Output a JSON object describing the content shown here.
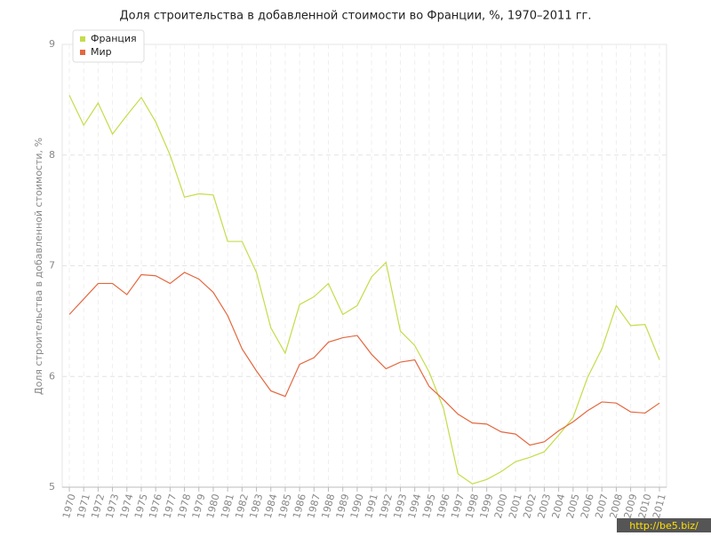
{
  "chart_data": {
    "type": "line",
    "title": "Доля строительства в добавленной стоимости во Франции, %, 1970–2011 гг.",
    "y_label": "Доля строительства в добавленной стоимости, %",
    "watermark": "http://be5.biz/",
    "categories": [
      "1970",
      "1971",
      "1972",
      "1973",
      "1974",
      "1975",
      "1976",
      "1977",
      "1978",
      "1979",
      "1980",
      "1981",
      "1982",
      "1983",
      "1984",
      "1985",
      "1986",
      "1987",
      "1988",
      "1989",
      "1990",
      "1991",
      "1992",
      "1993",
      "1994",
      "1995",
      "1996",
      "1997",
      "1998",
      "1999",
      "2000",
      "2001",
      "2002",
      "2003",
      "2004",
      "2005",
      "2006",
      "2007",
      "2008",
      "2009",
      "2010",
      "2011"
    ],
    "series": [
      {
        "name": "Франция",
        "color": "#c5dc4a",
        "values": [
          8.54,
          8.27,
          8.47,
          8.19,
          8.36,
          8.52,
          8.3,
          8.0,
          7.62,
          7.65,
          7.64,
          7.22,
          7.22,
          6.94,
          6.44,
          6.21,
          6.65,
          6.72,
          6.84,
          6.56,
          6.64,
          6.9,
          7.03,
          6.41,
          6.28,
          6.04,
          5.71,
          5.12,
          5.03,
          5.07,
          5.14,
          5.23,
          5.27,
          5.32,
          5.47,
          5.63,
          5.99,
          6.25,
          6.64,
          6.46,
          6.47,
          6.15
        ]
      },
      {
        "name": "Мир",
        "color": "#e3683f",
        "values": [
          6.56,
          6.7,
          6.84,
          6.84,
          6.74,
          6.92,
          6.91,
          6.84,
          6.94,
          6.88,
          6.76,
          6.55,
          6.25,
          6.05,
          5.87,
          5.82,
          6.11,
          6.17,
          6.31,
          6.35,
          6.37,
          6.2,
          6.07,
          6.13,
          6.15,
          5.91,
          5.79,
          5.66,
          5.58,
          5.57,
          5.5,
          5.48,
          5.38,
          5.41,
          5.51,
          5.59,
          5.69,
          5.77,
          5.76,
          5.68,
          5.67,
          5.76
        ]
      }
    ],
    "ylim": [
      5,
      9
    ],
    "yticks": [
      5,
      6,
      7,
      8,
      9
    ],
    "grid": true,
    "legend": "top-left"
  }
}
